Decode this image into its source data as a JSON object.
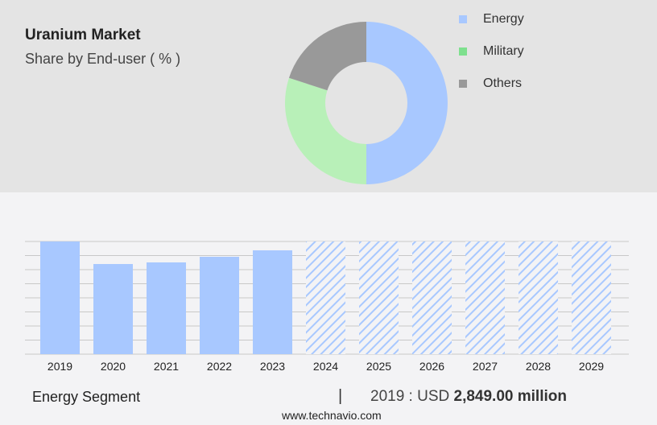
{
  "title": "Uranium Market",
  "subtitle": "Share by End-user ( % )",
  "chart_data": [
    {
      "type": "pie",
      "variant": "donut",
      "title": "Uranium Market",
      "subtitle": "Share by End-user ( % )",
      "categories": [
        "Energy",
        "Military",
        "Others"
      ],
      "values": [
        50,
        30,
        20
      ],
      "colors": [
        "#a8c8ff",
        "#b8f0b8",
        "#999999"
      ],
      "legend_colors": [
        "#a8c8ff",
        "#7ee08e",
        "#999999"
      ],
      "legend": "right"
    },
    {
      "type": "bar",
      "categories": [
        "2019",
        "2020",
        "2021",
        "2022",
        "2023",
        "2024",
        "2025",
        "2026",
        "2027",
        "2028",
        "2029"
      ],
      "values": [
        2849,
        2279,
        2320,
        2462,
        2625,
        null,
        null,
        null,
        null,
        null,
        null
      ],
      "forecast_from": "2024",
      "unit": "USD million",
      "grid": true,
      "color": "#a8c8ff"
    }
  ],
  "footer": {
    "segment": "Energy Segment",
    "separator": "|",
    "year_label": "2019 : USD",
    "value": "2,849.00 million",
    "site": "www.technavio.com"
  }
}
